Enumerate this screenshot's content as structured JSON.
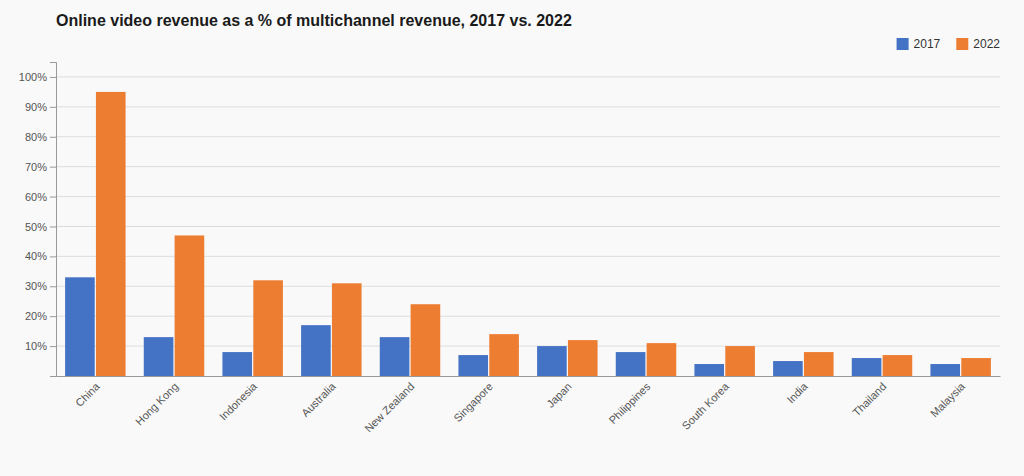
{
  "chart_data": {
    "type": "bar",
    "title": "Online video revenue as a % of multichannel revenue, 2017 vs. 2022",
    "categories": [
      "China",
      "Hong Kong",
      "Indonesia",
      "Australia",
      "New Zealand",
      "Singapore",
      "Japan",
      "Philippines",
      "South Korea",
      "India",
      "Thailand",
      "Malaysia"
    ],
    "series": [
      {
        "name": "2017",
        "color": "#4472c4",
        "values": [
          33,
          13,
          8,
          17,
          13,
          7,
          10,
          8,
          4,
          5,
          6,
          4
        ]
      },
      {
        "name": "2022",
        "color": "#ed7d31",
        "values": [
          95,
          47,
          32,
          31,
          24,
          14,
          12,
          11,
          10,
          8,
          7,
          6
        ]
      }
    ],
    "ylim": [
      0,
      105
    ],
    "yticks": [
      {
        "value": 10,
        "label": "10%"
      },
      {
        "value": 20,
        "label": "20%"
      },
      {
        "value": 30,
        "label": "30%"
      },
      {
        "value": 40,
        "label": "40%"
      },
      {
        "value": 50,
        "label": "50%"
      },
      {
        "value": 60,
        "label": "60%"
      },
      {
        "value": 70,
        "label": "70%"
      },
      {
        "value": 80,
        "label": "80%"
      },
      {
        "value": 90,
        "label": "90%"
      },
      {
        "value": 100,
        "label": "100%"
      }
    ],
    "grid": true,
    "legend": "upper right"
  }
}
